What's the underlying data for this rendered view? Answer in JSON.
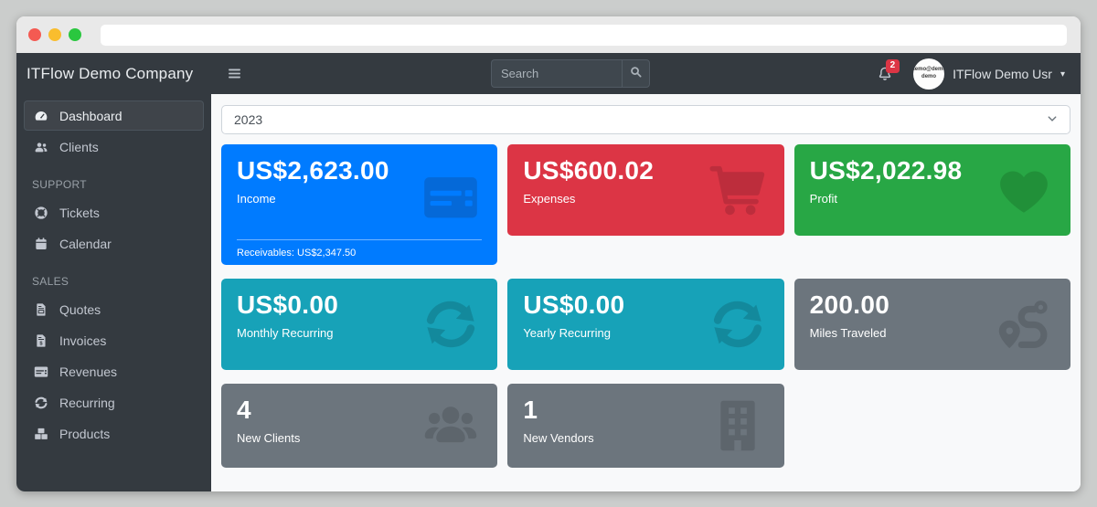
{
  "window": {
    "traffic_lights": [
      "close",
      "minimize",
      "zoom"
    ],
    "url_value": ""
  },
  "navbar": {
    "brand": "ITFlow Demo Company",
    "search_placeholder": "Search",
    "notification_count": "2",
    "avatar_line1": "demo@demo",
    "avatar_line2": "demo",
    "user_name": "ITFlow Demo Usr"
  },
  "sidebar": {
    "sections": [
      {
        "header": null,
        "items": [
          {
            "label": "Dashboard",
            "icon": "tachometer",
            "active": true
          },
          {
            "label": "Clients",
            "icon": "users",
            "active": false
          }
        ]
      },
      {
        "header": "SUPPORT",
        "items": [
          {
            "label": "Tickets",
            "icon": "life-ring",
            "active": false
          },
          {
            "label": "Calendar",
            "icon": "calendar",
            "active": false
          }
        ]
      },
      {
        "header": "SALES",
        "items": [
          {
            "label": "Quotes",
            "icon": "file-invoice",
            "active": false
          },
          {
            "label": "Invoices",
            "icon": "file-invoice-dollar",
            "active": false
          },
          {
            "label": "Revenues",
            "icon": "credit-card",
            "active": false
          },
          {
            "label": "Recurring",
            "icon": "sync",
            "active": false
          },
          {
            "label": "Products",
            "icon": "boxes",
            "active": false
          }
        ]
      }
    ]
  },
  "main": {
    "year_select": "2023",
    "cards": [
      {
        "value": "US$2,623.00",
        "label": "Income",
        "footer": "Receivables: US$2,347.50",
        "icon": "credit-card",
        "color": "#007bff",
        "icon_color": "#0569d8",
        "tall": true,
        "compact": false
      },
      {
        "value": "US$600.02",
        "label": "Expenses",
        "footer": null,
        "icon": "shopping-cart",
        "color": "#dc3545",
        "icon_color": "#bd2d3c",
        "tall": false,
        "compact": false
      },
      {
        "value": "US$2,022.98",
        "label": "Profit",
        "footer": null,
        "icon": "heart",
        "color": "#28a745",
        "icon_color": "#219039",
        "tall": false,
        "compact": false
      },
      {
        "value": "US$0.00",
        "label": "Monthly Recurring",
        "footer": null,
        "icon": "sync",
        "color": "#17a2b8",
        "icon_color": "#13899c",
        "tall": false,
        "compact": false
      },
      {
        "value": "US$0.00",
        "label": "Yearly Recurring",
        "footer": null,
        "icon": "sync",
        "color": "#17a2b8",
        "icon_color": "#13899c",
        "tall": false,
        "compact": false
      },
      {
        "value": "200.00",
        "label": "Miles Traveled",
        "footer": null,
        "icon": "route",
        "color": "#6c757d",
        "icon_color": "#5d656c",
        "tall": false,
        "compact": false
      },
      {
        "value": "4",
        "label": "New Clients",
        "footer": null,
        "icon": "users-group",
        "color": "#6c757d",
        "icon_color": "#5d656c",
        "tall": false,
        "compact": true
      },
      {
        "value": "1",
        "label": "New Vendors",
        "footer": null,
        "icon": "building",
        "color": "#6c757d",
        "icon_color": "#5d656c",
        "tall": false,
        "compact": true
      }
    ]
  },
  "colors": {
    "navbar_bg": "#343a40",
    "main_bg": "#f8f9fa",
    "primary": "#007bff",
    "danger": "#dc3545",
    "success": "#28a745",
    "info": "#17a2b8",
    "secondary": "#6c757d",
    "badge": "#dc3545",
    "traffic_red": "#f45a52",
    "traffic_yellow": "#f9bd2e",
    "traffic_green": "#2ac73f"
  }
}
